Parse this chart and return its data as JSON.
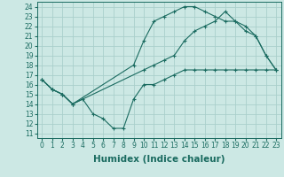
{
  "xlabel": "Humidex (Indice chaleur)",
  "bg_color": "#cce8e4",
  "grid_color": "#aacfcb",
  "line_color": "#1a6b60",
  "xlim": [
    -0.5,
    23.5
  ],
  "ylim": [
    10.5,
    24.5
  ],
  "xticks": [
    0,
    1,
    2,
    3,
    4,
    5,
    6,
    7,
    8,
    9,
    10,
    11,
    12,
    13,
    14,
    15,
    16,
    17,
    18,
    19,
    20,
    21,
    22,
    23
  ],
  "yticks": [
    11,
    12,
    13,
    14,
    15,
    16,
    17,
    18,
    19,
    20,
    21,
    22,
    23,
    24
  ],
  "curve1_x": [
    0,
    1,
    2,
    3,
    4,
    5,
    6,
    7,
    8,
    9,
    10,
    11,
    12,
    13,
    14,
    15,
    16,
    17,
    18,
    19,
    20,
    21,
    22,
    23
  ],
  "curve1_y": [
    16.5,
    15.5,
    15.0,
    14.0,
    14.5,
    13.0,
    12.5,
    11.5,
    11.5,
    14.5,
    16.0,
    16.0,
    16.5,
    17.0,
    17.5,
    17.5,
    17.5,
    17.5,
    17.5,
    17.5,
    17.5,
    17.5,
    17.5,
    17.5
  ],
  "curve2_x": [
    0,
    1,
    2,
    3,
    9,
    10,
    11,
    12,
    13,
    14,
    15,
    16,
    17,
    18,
    19,
    20,
    21,
    22,
    23
  ],
  "curve2_y": [
    16.5,
    15.5,
    15.0,
    14.0,
    18.0,
    20.5,
    22.5,
    23.0,
    23.5,
    24.0,
    24.0,
    23.5,
    23.0,
    22.5,
    22.5,
    21.5,
    21.0,
    19.0,
    17.5
  ],
  "curve3_x": [
    0,
    1,
    2,
    3,
    10,
    11,
    12,
    13,
    14,
    15,
    16,
    17,
    18,
    19,
    20,
    21,
    22,
    23
  ],
  "curve3_y": [
    16.5,
    15.5,
    15.0,
    14.0,
    17.5,
    18.0,
    18.5,
    19.0,
    20.5,
    21.5,
    22.0,
    22.5,
    23.5,
    22.5,
    22.0,
    21.0,
    19.0,
    17.5
  ],
  "tick_fontsize": 5.5,
  "xlabel_fontsize": 7.5
}
